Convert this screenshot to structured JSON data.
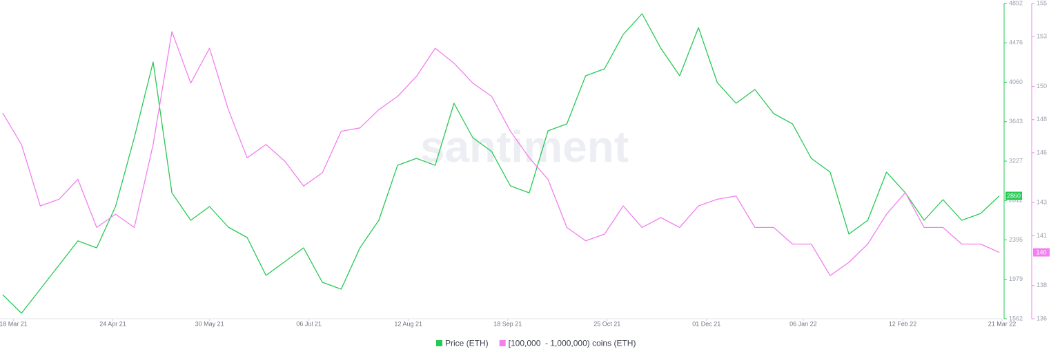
{
  "chart_data": {
    "type": "line",
    "watermark": "santiment",
    "x": [
      "2021-03-14",
      "2021-03-21",
      "2021-03-28",
      "2021-04-04",
      "2021-04-11",
      "2021-04-18",
      "2021-04-25",
      "2021-05-02",
      "2021-05-09",
      "2021-05-16",
      "2021-05-23",
      "2021-05-30",
      "2021-06-06",
      "2021-06-13",
      "2021-06-20",
      "2021-06-27",
      "2021-07-04",
      "2021-07-11",
      "2021-07-18",
      "2021-07-25",
      "2021-08-01",
      "2021-08-08",
      "2021-08-15",
      "2021-08-22",
      "2021-08-29",
      "2021-09-05",
      "2021-09-12",
      "2021-09-19",
      "2021-09-26",
      "2021-10-03",
      "2021-10-10",
      "2021-10-17",
      "2021-10-24",
      "2021-10-31",
      "2021-11-07",
      "2021-11-14",
      "2021-11-21",
      "2021-11-28",
      "2021-12-05",
      "2021-12-12",
      "2021-12-19",
      "2021-12-26",
      "2022-01-02",
      "2022-01-09",
      "2022-01-16",
      "2022-01-23",
      "2022-01-30",
      "2022-02-06",
      "2022-02-13",
      "2022-02-20",
      "2022-02-27",
      "2022-03-06",
      "2022-03-13",
      "2022-03-20"
    ],
    "xlim": [
      "2021-03-13",
      "2022-03-21"
    ],
    "xticks": [
      {
        "value": "2021-03-18",
        "label": "18 Mar 21"
      },
      {
        "value": "2021-04-24",
        "label": "24 Apr 21"
      },
      {
        "value": "2021-05-30",
        "label": "30 May 21"
      },
      {
        "value": "2021-07-06",
        "label": "06 Jul 21"
      },
      {
        "value": "2021-08-12",
        "label": "12 Aug 21"
      },
      {
        "value": "2021-09-18",
        "label": "18 Sep 21"
      },
      {
        "value": "2021-10-25",
        "label": "25 Oct 21"
      },
      {
        "value": "2021-12-01",
        "label": "01 Dec 21"
      },
      {
        "value": "2022-01-06",
        "label": "06 Jan 22"
      },
      {
        "value": "2022-02-12",
        "label": "12 Feb 22"
      },
      {
        "value": "2022-03-21",
        "label": "21 Mar 22"
      }
    ],
    "ylim": [
      1562,
      4892
    ],
    "yticks": [
      1562,
      1979,
      2395,
      2811,
      3227,
      3643,
      4060,
      4476,
      4892
    ],
    "y2lim": [
      136,
      155
    ],
    "y2ticks": [
      136,
      138,
      141,
      143,
      146,
      148,
      150,
      153,
      155
    ],
    "series": [
      {
        "name": "Price (ETH)",
        "color": "#26c953",
        "axis": "y",
        "values": [
          1816,
          1620,
          1875,
          2129,
          2384,
          2311,
          2747,
          3474,
          4274,
          2892,
          2602,
          2747,
          2529,
          2420,
          2020,
          2165,
          2311,
          1947,
          1875,
          2311,
          2602,
          3183,
          3256,
          3183,
          3838,
          3474,
          3329,
          2965,
          2892,
          3547,
          3620,
          4128,
          4201,
          4565,
          4783,
          4419,
          4128,
          4637,
          4056,
          3838,
          3983,
          3729,
          3620,
          3256,
          3111,
          2456,
          2602,
          3111,
          2892,
          2602,
          2820,
          2602,
          2674,
          2860
        ]
      },
      {
        "name": "[100,000  - 1,000,000) coins (ETH)",
        "color": "#f27ef0",
        "axis": "y2",
        "values": [
          148.4,
          146.5,
          142.8,
          143.2,
          144.4,
          141.5,
          142.3,
          141.5,
          146.5,
          153.3,
          150.2,
          152.3,
          148.6,
          145.7,
          146.5,
          145.5,
          144.0,
          144.8,
          147.3,
          147.5,
          148.6,
          149.4,
          150.6,
          152.3,
          151.4,
          150.2,
          149.4,
          147.3,
          145.7,
          144.4,
          141.5,
          140.7,
          141.1,
          142.8,
          141.5,
          142.1,
          141.5,
          142.8,
          143.2,
          143.4,
          141.5,
          141.5,
          140.5,
          140.5,
          138.6,
          139.4,
          140.5,
          142.3,
          143.6,
          141.5,
          141.5,
          140.5,
          140.5,
          140
        ]
      }
    ]
  }
}
